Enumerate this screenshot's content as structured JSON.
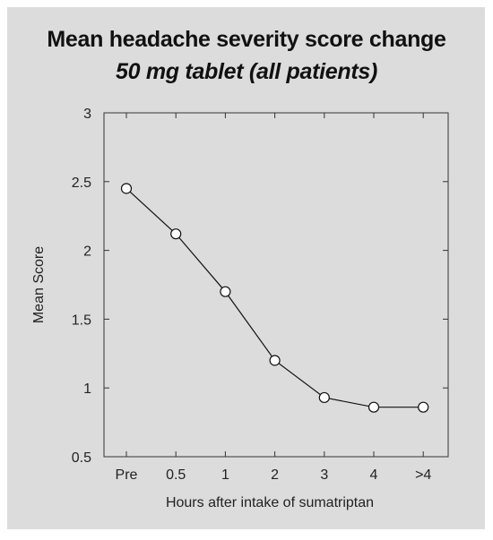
{
  "chart_data": {
    "type": "line",
    "title": "Mean headache severity score change",
    "subtitle": "50 mg tablet (all patients)",
    "xlabel": "Hours after intake of sumatriptan",
    "ylabel": "Mean Score",
    "categories": [
      "Pre",
      "0.5",
      "1",
      "2",
      "3",
      "4",
      ">4"
    ],
    "series": [
      {
        "values": [
          2.45,
          2.12,
          1.7,
          1.2,
          0.93,
          0.86,
          0.86
        ]
      }
    ],
    "ylim": [
      0.5,
      3
    ],
    "yticks": [
      "0.5",
      "1",
      "1.5",
      "2",
      "2.5",
      "3"
    ],
    "grid": false,
    "colors": {
      "background": "#dcdcdc",
      "line": "#111111",
      "marker_fill": "#ffffff"
    }
  }
}
